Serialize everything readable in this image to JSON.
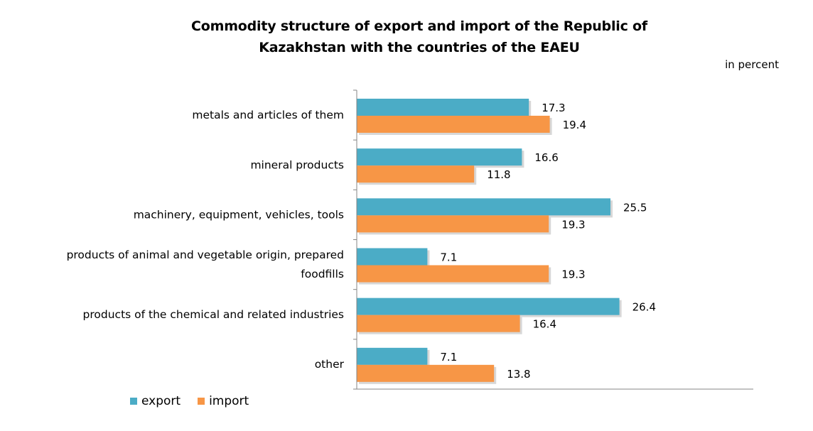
{
  "chart_data": {
    "type": "bar",
    "orientation": "horizontal",
    "title": "Commodity structure of export and import of the Republic of Kazakhstan with the countries  of the EAEU",
    "title_lines": [
      "Commodity structure of export and import of the Republic of",
      "Kazakhstan with the countries  of the EAEU"
    ],
    "unit_label": "in percent",
    "categories": [
      {
        "label_lines": [
          "metals and articles of them"
        ]
      },
      {
        "label_lines": [
          "mineral products"
        ]
      },
      {
        "label_lines": [
          "machinery, equipment, vehicles, tools"
        ]
      },
      {
        "label_lines": [
          "products of animal and vegetable origin, prepared",
          "foodfills"
        ]
      },
      {
        "label_lines": [
          "products of the chemical and related industries"
        ]
      },
      {
        "label_lines": [
          "other"
        ]
      }
    ],
    "series": [
      {
        "name": "export",
        "color": "#4BACC6",
        "values": [
          17.3,
          16.6,
          25.5,
          7.1,
          26.4,
          7.1
        ]
      },
      {
        "name": "import",
        "color": "#F79646",
        "values": [
          19.4,
          11.8,
          19.3,
          19.3,
          16.4,
          13.8
        ]
      }
    ],
    "xlim": [
      0,
      40
    ],
    "grid": false,
    "legend_position": "bottom-left"
  }
}
